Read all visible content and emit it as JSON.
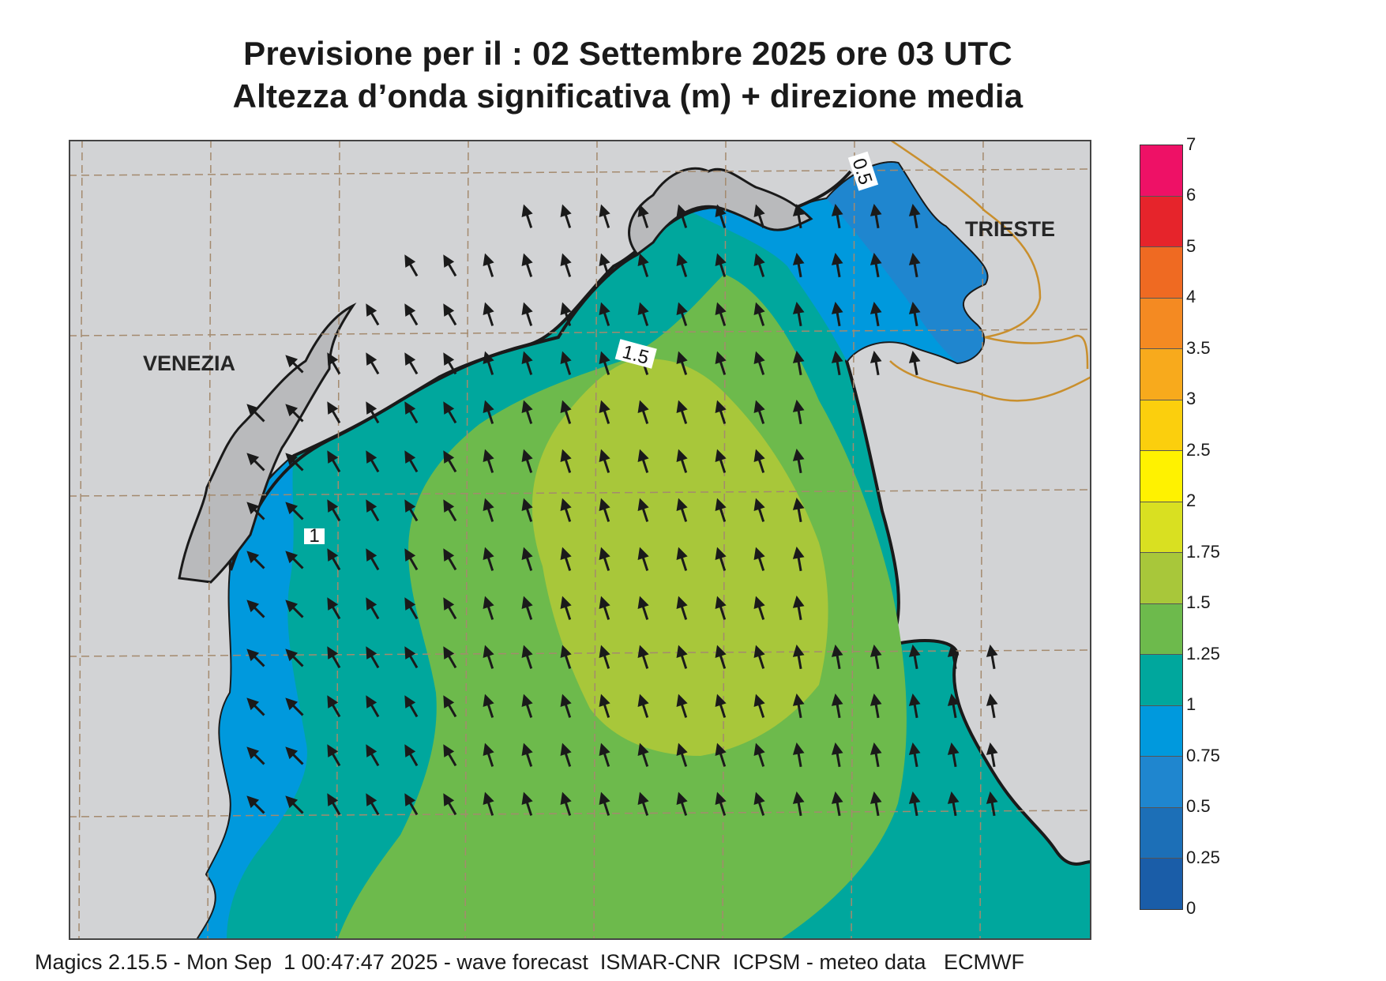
{
  "title": {
    "line1": "Previsione per il  :  02 Settembre 2025   ore 03 UTC",
    "line2": "Altezza d’onda significativa (m) + direzione media"
  },
  "map": {
    "cities": [
      "VENEZIA",
      "TRIESTE"
    ],
    "contour_labels": [
      "0.5",
      "1.5",
      "1"
    ],
    "land_color": "#d2d3d5",
    "grid_color": "#a48a6e",
    "border_color": "#c98f2d"
  },
  "chart_data": {
    "type": "heatmap",
    "legend_levels": [
      "7",
      "6",
      "5",
      "4",
      "3.5",
      "3",
      "2.5",
      "2",
      "1.75",
      "1.5",
      "1.25",
      "1",
      "0.75",
      "0.5",
      "0.25",
      "0"
    ],
    "legend_colors": [
      "#ee1166",
      "#e6242b",
      "#ef6a22",
      "#f48a22",
      "#f8aa1c",
      "#fbcf0d",
      "#fff200",
      "#d9e021",
      "#a8c73a",
      "#6dba4c",
      "#00a79d",
      "#0099dd",
      "#1f86cf",
      "#1c6fb7",
      "#1a5da8"
    ]
  },
  "footer": "Magics 2.15.5 - Mon Sep  1 00:47:47 2025 - wave forecast  ISMAR-CNR  ICPSM - meteo data   ECMWF"
}
